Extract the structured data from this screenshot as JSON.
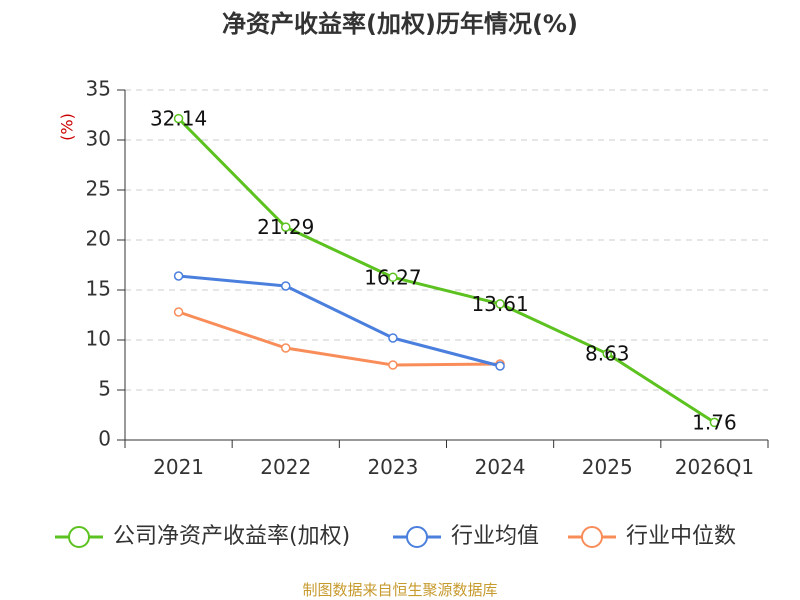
{
  "chart_data": {
    "type": "line",
    "title": "净资产收益率(加权)历年情况(%)",
    "ylabel": "(%)",
    "xlabel": "",
    "categories": [
      "2021",
      "2022",
      "2023",
      "2024",
      "2025",
      "2026Q1"
    ],
    "ylim": [
      0,
      35
    ],
    "yticks": [
      0,
      5,
      10,
      15,
      20,
      25,
      30,
      35
    ],
    "grid": true,
    "legend_position": "bottom",
    "series": [
      {
        "name": "公司净资产收益率(加权)",
        "color": "#5cc21f",
        "values": [
          32.14,
          21.29,
          16.27,
          13.61,
          8.63,
          1.76
        ],
        "labels": [
          "32.14",
          "21.29",
          "16.27",
          "13.61",
          "8.63",
          "1.76"
        ]
      },
      {
        "name": "行业均值",
        "color": "#4a7fde",
        "values": [
          16.4,
          15.4,
          10.2,
          7.4,
          null,
          null
        ]
      },
      {
        "name": "行业中位数",
        "color": "#f98d5a",
        "values": [
          12.8,
          9.2,
          7.5,
          7.6,
          null,
          null
        ]
      }
    ],
    "source_text": "制图数据来自恒生聚源数据库",
    "colors": {
      "title": "#333333",
      "ylabel": "#cc0000",
      "source": "#c79a2e",
      "grid": "#cccccc",
      "axis": "#333333"
    }
  }
}
